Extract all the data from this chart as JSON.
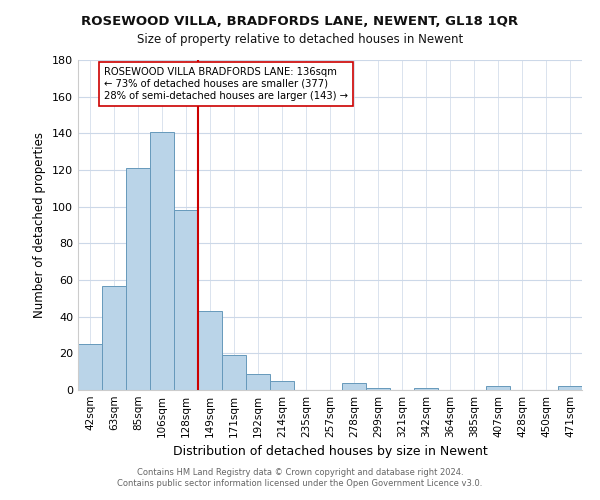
{
  "title": "ROSEWOOD VILLA, BRADFORDS LANE, NEWENT, GL18 1QR",
  "subtitle": "Size of property relative to detached houses in Newent",
  "xlabel": "Distribution of detached houses by size in Newent",
  "ylabel": "Number of detached properties",
  "bar_labels": [
    "42sqm",
    "63sqm",
    "85sqm",
    "106sqm",
    "128sqm",
    "149sqm",
    "171sqm",
    "192sqm",
    "214sqm",
    "235sqm",
    "257sqm",
    "278sqm",
    "299sqm",
    "321sqm",
    "342sqm",
    "364sqm",
    "385sqm",
    "407sqm",
    "428sqm",
    "450sqm",
    "471sqm"
  ],
  "bar_values": [
    25,
    57,
    121,
    141,
    98,
    43,
    19,
    9,
    5,
    0,
    0,
    4,
    1,
    0,
    1,
    0,
    0,
    2,
    0,
    0,
    2
  ],
  "bar_color": "#bad4e8",
  "bar_edge_color": "#6699bb",
  "redline_x": 4.5,
  "vline_color": "#cc0000",
  "ylim": [
    0,
    180
  ],
  "yticks": [
    0,
    20,
    40,
    60,
    80,
    100,
    120,
    140,
    160,
    180
  ],
  "footer1": "Contains HM Land Registry data © Crown copyright and database right 2024.",
  "footer2": "Contains public sector information licensed under the Open Government Licence v3.0.",
  "bg_color": "#ffffff",
  "grid_color": "#ccd8e8"
}
